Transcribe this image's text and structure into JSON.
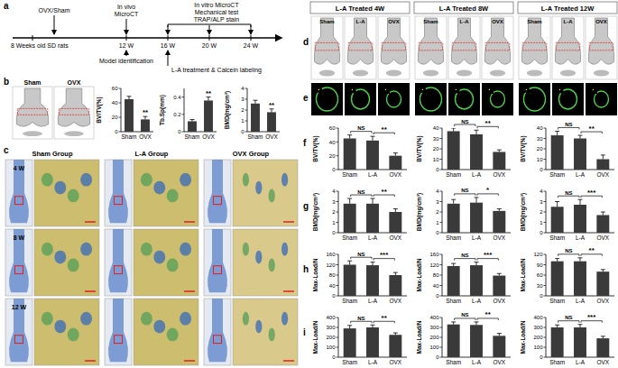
{
  "figure": {
    "panel_labels": [
      "a",
      "b",
      "c",
      "d",
      "e",
      "f",
      "g",
      "h",
      "i"
    ],
    "timeline": {
      "events_top": [
        "OVX/Sham",
        "In vivo",
        "MicroCT",
        "In vitro MicroCT",
        "Mechanical test",
        "TRAP/ALP stain"
      ],
      "ticks": [
        "8 Weeks old SD rats",
        "12 W",
        "16 W",
        "20 W",
        "24 W"
      ],
      "events_bottom": [
        "Model identification",
        "L-A treatment & Calcein labeling"
      ]
    },
    "b_image_labels": [
      "Sham",
      "OVX"
    ],
    "c_columns": [
      "Sham Group",
      "L-A Group",
      "OVX Group"
    ],
    "c_rows": [
      "4 W",
      "8 W",
      "12 W"
    ],
    "d_headers": [
      "L-A Treated 4W",
      "L-A Treated 8W",
      "L-A Treated 12W"
    ],
    "d_image_labels": [
      "Sham",
      "L-A",
      "OVX"
    ]
  },
  "chart_data": [
    {
      "type": "bar",
      "y_label": "BV/TV(%)",
      "categories": [
        "Sham",
        "OVX"
      ],
      "values": [
        45,
        17
      ],
      "errors": [
        4,
        4
      ],
      "color": "#3a3a3a",
      "ylim": [
        0,
        60
      ],
      "yticks": [
        0,
        20,
        40,
        60
      ],
      "significance": [
        "**"
      ]
    },
    {
      "type": "bar",
      "y_label": "Tb.Sp(mm)",
      "categories": [
        "Sham",
        "OVX"
      ],
      "values": [
        0.12,
        0.36
      ],
      "errors": [
        0.02,
        0.04
      ],
      "color": "#3a3a3a",
      "ylim": [
        0,
        0.5
      ],
      "yticks": [
        0,
        0.2,
        0.4
      ],
      "significance": [
        "**"
      ]
    },
    {
      "type": "bar",
      "y_label": "BMD(mg/cm³)",
      "categories": [
        "Sham",
        "OVX"
      ],
      "values": [
        2.6,
        1.8
      ],
      "errors": [
        0.3,
        0.3
      ],
      "color": "#3a3a3a",
      "ylim": [
        0,
        4
      ],
      "yticks": [
        0,
        1,
        2,
        3,
        4
      ],
      "significance": [
        "**"
      ]
    },
    {
      "type": "bar",
      "y_label": "BV/TV(%)",
      "categories": [
        "Sham",
        "L-A",
        "OVX"
      ],
      "values": [
        45,
        42,
        20
      ],
      "errors": [
        5,
        6,
        4
      ],
      "color": "#3a3a3a",
      "ylim": [
        0,
        60
      ],
      "yticks": [
        0,
        20,
        40,
        60
      ],
      "significance": [
        "NS",
        "**"
      ]
    },
    {
      "type": "bar",
      "y_label": "BV/TV(%)",
      "categories": [
        "Sham",
        "L-A",
        "OVX"
      ],
      "values": [
        37,
        34,
        17
      ],
      "errors": [
        3,
        4,
        2
      ],
      "color": "#3a3a3a",
      "ylim": [
        0,
        40
      ],
      "yticks": [
        0,
        10,
        20,
        30,
        40
      ],
      "significance": [
        "NS",
        "**"
      ]
    },
    {
      "type": "bar",
      "y_label": "BV/TV(%)",
      "categories": [
        "Sham",
        "L-A",
        "OVX"
      ],
      "values": [
        33,
        30,
        10
      ],
      "errors": [
        4,
        3,
        4
      ],
      "color": "#3a3a3a",
      "ylim": [
        0,
        40
      ],
      "yticks": [
        0,
        10,
        20,
        30,
        40
      ],
      "significance": [
        "NS",
        "**"
      ]
    },
    {
      "type": "bar",
      "y_label": "BMD(mg/cm³)",
      "categories": [
        "Sham",
        "L-A",
        "OVX"
      ],
      "values": [
        2.8,
        2.8,
        2.0
      ],
      "errors": [
        0.5,
        0.5,
        0.3
      ],
      "color": "#3a3a3a",
      "ylim": [
        0,
        4
      ],
      "yticks": [
        0,
        1,
        2,
        3,
        4
      ],
      "significance": [
        "NS",
        "**"
      ]
    },
    {
      "type": "bar",
      "y_label": "BMD(mg/cm³)",
      "categories": [
        "Sham",
        "L-A",
        "OVX"
      ],
      "values": [
        2.8,
        2.9,
        2.1
      ],
      "errors": [
        0.4,
        0.5,
        0.2
      ],
      "color": "#3a3a3a",
      "ylim": [
        0,
        4
      ],
      "yticks": [
        0,
        1,
        2,
        3,
        4
      ],
      "significance": [
        "NS",
        "*"
      ]
    },
    {
      "type": "bar",
      "y_label": "BMD(mg/cm³)",
      "categories": [
        "Sham",
        "L-A",
        "OVX"
      ],
      "values": [
        2.5,
        2.7,
        1.7
      ],
      "errors": [
        0.5,
        0.5,
        0.3
      ],
      "color": "#3a3a3a",
      "ylim": [
        0,
        4
      ],
      "yticks": [
        0,
        1,
        2,
        3,
        4
      ],
      "significance": [
        "NS",
        "***"
      ]
    },
    {
      "type": "bar",
      "y_label": "Max-Load/N",
      "categories": [
        "Sham",
        "L-A",
        "OVX"
      ],
      "values": [
        120,
        118,
        80
      ],
      "errors": [
        15,
        12,
        10
      ],
      "color": "#3a3a3a",
      "ylim": [
        0,
        160
      ],
      "yticks": [
        0,
        40,
        80,
        120,
        160
      ],
      "significance": [
        "NS",
        "***"
      ]
    },
    {
      "type": "bar",
      "y_label": "Max-Load/N",
      "categories": [
        "Sham",
        "L-A",
        "OVX"
      ],
      "values": [
        115,
        118,
        78
      ],
      "errors": [
        10,
        12,
        8
      ],
      "color": "#3a3a3a",
      "ylim": [
        0,
        160
      ],
      "yticks": [
        0,
        40,
        80,
        120,
        160
      ],
      "significance": [
        "NS",
        "***"
      ]
    },
    {
      "type": "bar",
      "y_label": "Max-Load/N",
      "categories": [
        "Sham",
        "L-A",
        "OVX"
      ],
      "values": [
        100,
        100,
        70
      ],
      "errors": [
        8,
        10,
        6
      ],
      "color": "#3a3a3a",
      "ylim": [
        0,
        120
      ],
      "yticks": [
        0,
        30,
        60,
        90,
        120
      ],
      "significance": [
        "NS",
        "**"
      ]
    },
    {
      "type": "bar",
      "y_label": "Max-Load/N",
      "categories": [
        "Sham",
        "L-A",
        "OVX"
      ],
      "values": [
        290,
        300,
        225
      ],
      "errors": [
        30,
        25,
        20
      ],
      "color": "#3a3a3a",
      "ylim": [
        0,
        400
      ],
      "yticks": [
        0,
        100,
        200,
        300,
        400
      ],
      "significance": [
        "NS",
        "**"
      ]
    },
    {
      "type": "bar",
      "y_label": "Max-Load/N",
      "categories": [
        "Sham",
        "L-A",
        "OVX"
      ],
      "values": [
        330,
        325,
        215
      ],
      "errors": [
        25,
        30,
        25
      ],
      "color": "#3a3a3a",
      "ylim": [
        0,
        400
      ],
      "yticks": [
        0,
        100,
        200,
        300,
        400
      ],
      "significance": [
        "NS",
        "**"
      ]
    },
    {
      "type": "bar",
      "y_label": "Max-Load/N",
      "categories": [
        "Sham",
        "L-A",
        "OVX"
      ],
      "values": [
        300,
        300,
        190
      ],
      "errors": [
        25,
        30,
        20
      ],
      "color": "#3a3a3a",
      "ylim": [
        0,
        400
      ],
      "yticks": [
        0,
        100,
        200,
        300,
        400
      ],
      "significance": [
        "NS",
        "***"
      ]
    }
  ]
}
